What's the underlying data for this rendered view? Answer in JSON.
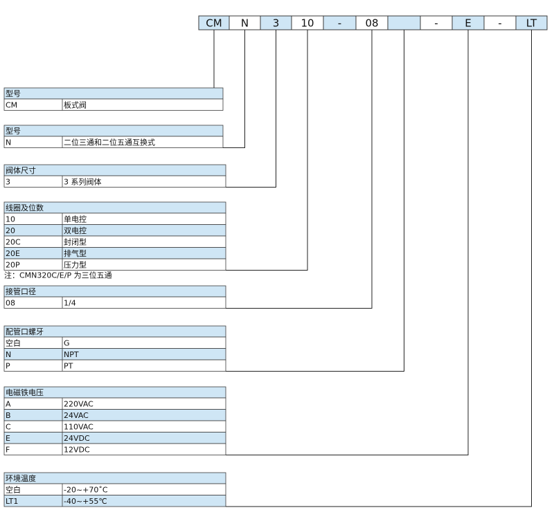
{
  "code": [
    "CM",
    "N",
    "3",
    "10",
    "-",
    "08",
    null,
    "-",
    "E",
    "-",
    "LT"
  ],
  "tables": [
    {
      "title": "型号",
      "rows": [
        [
          "CM",
          "板式阀"
        ]
      ]
    },
    {
      "title": "型号",
      "rows": [
        [
          "N",
          "二位三通和二位五通互换式"
        ]
      ]
    },
    {
      "title": "阀体尺寸",
      "rows": [
        [
          "3",
          "3 系列阀体"
        ]
      ]
    },
    {
      "title": "线圈及位数",
      "rows": [
        [
          "10",
          "单电控"
        ],
        [
          "20",
          "双电控"
        ],
        [
          "20C",
          "封闭型"
        ],
        [
          "20E",
          "排气型"
        ],
        [
          "20P",
          "压力型"
        ]
      ],
      "note": "注：CMN320C/E/P 为三位五通"
    },
    {
      "title": "接管口径",
      "rows": [
        [
          "08",
          "1/4"
        ]
      ]
    },
    {
      "title": "配管口螺牙",
      "rows": [
        [
          "空白",
          "G"
        ],
        [
          "N",
          "NPT"
        ],
        [
          "P",
          "PT"
        ]
      ]
    },
    {
      "title": "电磁铁电压",
      "rows": [
        [
          "A",
          "220VAC"
        ],
        [
          "B",
          "24VAC"
        ],
        [
          "C",
          "110VAC"
        ],
        [
          "E",
          "24VDC"
        ],
        [
          "F",
          "12VDC"
        ]
      ]
    },
    {
      "title": "环境温度",
      "rows": [
        [
          "空白",
          "-20~+70˚C"
        ],
        [
          "LT1",
          "-40~+55℃"
        ]
      ]
    }
  ]
}
